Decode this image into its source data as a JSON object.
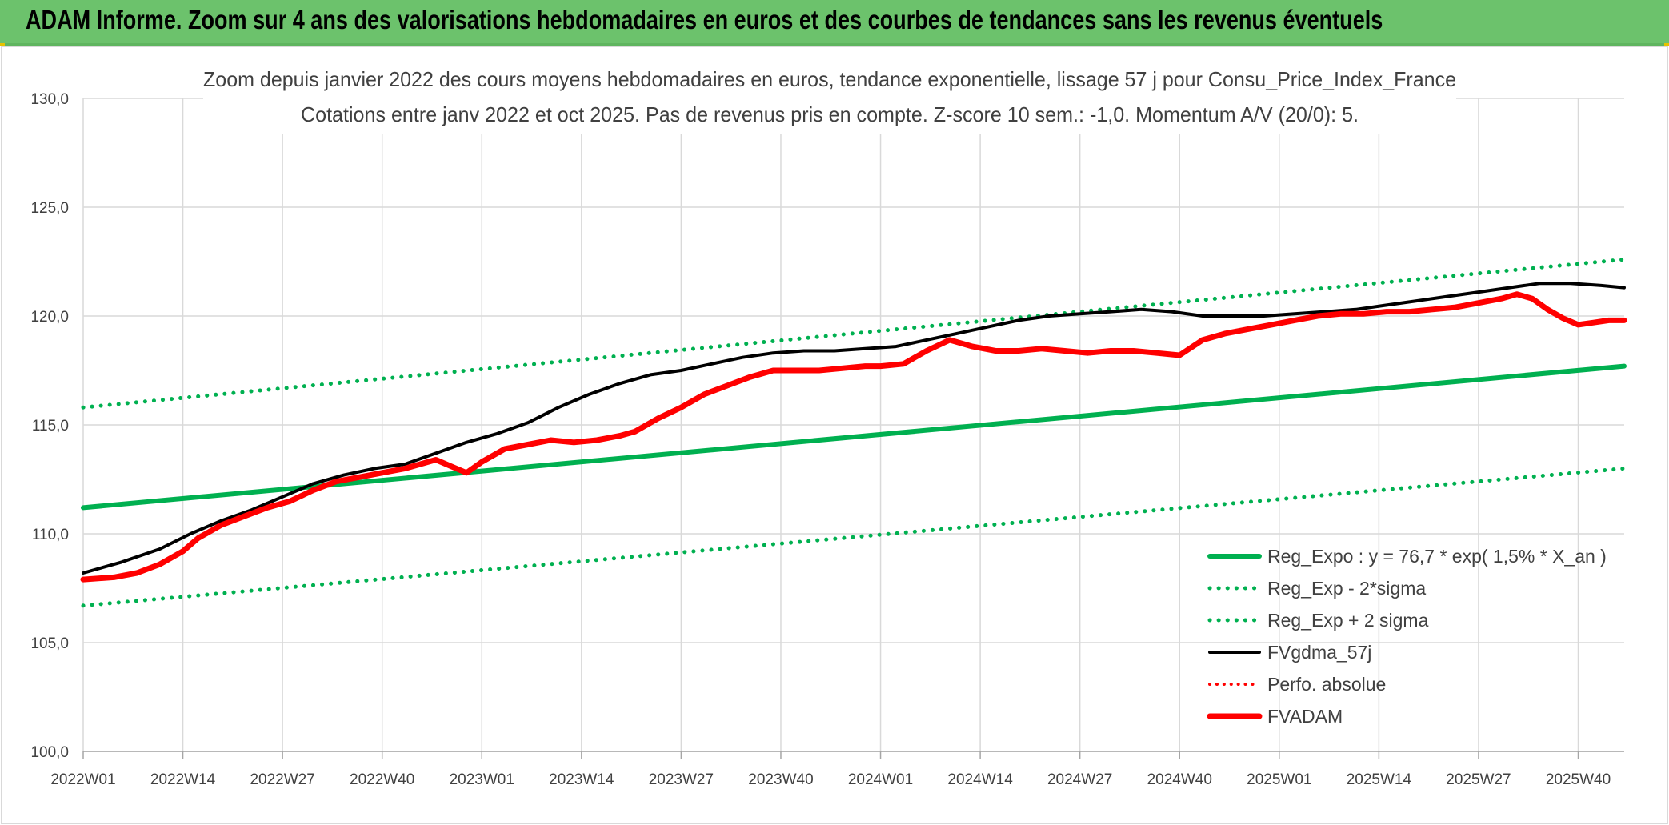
{
  "banner": {
    "title": "ADAM Informe. Zoom sur 4 ans des valorisations hebdomadaires en euros et des courbes de tendances sans les revenus éventuels"
  },
  "chart_data": {
    "type": "line",
    "title_line1": "Zoom depuis janvier 2022 des cours moyens hebdomadaires en euros, tendance exponentielle, lissage 57 j pour Consu_Price_Index_France",
    "title_line2": "Cotations entre janv 2022 et oct 2025. Pas de revenus pris en compte. Z-score 10 sem.: -1,0. Momentum A/V (20/0): 5.",
    "ylim": [
      100,
      130
    ],
    "y_ticks": [
      "100,0",
      "105,0",
      "110,0",
      "115,0",
      "120,0",
      "125,0",
      "130,0"
    ],
    "x_tick_labels": [
      "2022W01",
      "2022W14",
      "2022W27",
      "2022W40",
      "2023W01",
      "2023W14",
      "2023W27",
      "2023W40",
      "2024W01",
      "2024W14",
      "2024W27",
      "2024W40",
      "2025W01",
      "2025W14",
      "2025W27",
      "2025W40"
    ],
    "x_tick_index": [
      0,
      13,
      26,
      39,
      52,
      65,
      78,
      91,
      104,
      117,
      130,
      143,
      156,
      169,
      182,
      195
    ],
    "n_weeks": 202,
    "grid": true,
    "legend_position": "bottom-right",
    "series": [
      {
        "name": "Reg_Expo : y = 76,7 * exp( 1,5% *  X_an )",
        "color": "#00b050",
        "style": "solid",
        "width": 6,
        "points": [
          [
            0,
            111.2
          ],
          [
            201,
            117.7
          ]
        ]
      },
      {
        "name": "Reg_Exp - 2*sigma",
        "color": "#00b050",
        "style": "dotted",
        "width": 5,
        "points": [
          [
            0,
            106.7
          ],
          [
            201,
            113.0
          ]
        ]
      },
      {
        "name": "Reg_Exp + 2 sigma",
        "color": "#00b050",
        "style": "dotted",
        "width": 5,
        "points": [
          [
            0,
            115.8
          ],
          [
            201,
            122.6
          ]
        ]
      },
      {
        "name": "FVgdma_57j",
        "color": "#000000",
        "style": "solid",
        "width": 4,
        "points": [
          [
            0,
            108.2
          ],
          [
            5,
            108.7
          ],
          [
            10,
            109.3
          ],
          [
            14,
            110.0
          ],
          [
            18,
            110.6
          ],
          [
            22,
            111.1
          ],
          [
            26,
            111.7
          ],
          [
            30,
            112.3
          ],
          [
            34,
            112.7
          ],
          [
            38,
            113.0
          ],
          [
            42,
            113.2
          ],
          [
            46,
            113.7
          ],
          [
            50,
            114.2
          ],
          [
            54,
            114.6
          ],
          [
            58,
            115.1
          ],
          [
            62,
            115.8
          ],
          [
            66,
            116.4
          ],
          [
            70,
            116.9
          ],
          [
            74,
            117.3
          ],
          [
            78,
            117.5
          ],
          [
            82,
            117.8
          ],
          [
            86,
            118.1
          ],
          [
            90,
            118.3
          ],
          [
            94,
            118.4
          ],
          [
            98,
            118.4
          ],
          [
            102,
            118.5
          ],
          [
            106,
            118.6
          ],
          [
            110,
            118.9
          ],
          [
            114,
            119.2
          ],
          [
            118,
            119.5
          ],
          [
            122,
            119.8
          ],
          [
            126,
            120.0
          ],
          [
            130,
            120.1
          ],
          [
            134,
            120.2
          ],
          [
            138,
            120.3
          ],
          [
            142,
            120.2
          ],
          [
            146,
            120.0
          ],
          [
            150,
            120.0
          ],
          [
            154,
            120.0
          ],
          [
            158,
            120.1
          ],
          [
            162,
            120.2
          ],
          [
            166,
            120.3
          ],
          [
            170,
            120.5
          ],
          [
            174,
            120.7
          ],
          [
            178,
            120.9
          ],
          [
            182,
            121.1
          ],
          [
            186,
            121.3
          ],
          [
            190,
            121.5
          ],
          [
            194,
            121.5
          ],
          [
            198,
            121.4
          ],
          [
            201,
            121.3
          ]
        ]
      },
      {
        "name": "Perfo. absolue",
        "color": "#ff0000",
        "style": "dotted",
        "width": 4,
        "points": []
      },
      {
        "name": "FVADAM",
        "color": "#ff0000",
        "style": "solid",
        "width": 7,
        "points": [
          [
            0,
            107.9
          ],
          [
            4,
            108.0
          ],
          [
            7,
            108.2
          ],
          [
            10,
            108.6
          ],
          [
            13,
            109.2
          ],
          [
            15,
            109.8
          ],
          [
            18,
            110.4
          ],
          [
            21,
            110.8
          ],
          [
            24,
            111.2
          ],
          [
            27,
            111.5
          ],
          [
            30,
            112.0
          ],
          [
            33,
            112.4
          ],
          [
            36,
            112.6
          ],
          [
            39,
            112.8
          ],
          [
            42,
            113.0
          ],
          [
            46,
            113.4
          ],
          [
            48,
            113.1
          ],
          [
            50,
            112.8
          ],
          [
            52,
            113.3
          ],
          [
            55,
            113.9
          ],
          [
            58,
            114.1
          ],
          [
            61,
            114.3
          ],
          [
            64,
            114.2
          ],
          [
            67,
            114.3
          ],
          [
            70,
            114.5
          ],
          [
            72,
            114.7
          ],
          [
            75,
            115.3
          ],
          [
            78,
            115.8
          ],
          [
            81,
            116.4
          ],
          [
            84,
            116.8
          ],
          [
            87,
            117.2
          ],
          [
            90,
            117.5
          ],
          [
            93,
            117.5
          ],
          [
            96,
            117.5
          ],
          [
            99,
            117.6
          ],
          [
            102,
            117.7
          ],
          [
            104,
            117.7
          ],
          [
            107,
            117.8
          ],
          [
            110,
            118.4
          ],
          [
            113,
            118.9
          ],
          [
            116,
            118.6
          ],
          [
            119,
            118.4
          ],
          [
            122,
            118.4
          ],
          [
            125,
            118.5
          ],
          [
            128,
            118.4
          ],
          [
            131,
            118.3
          ],
          [
            134,
            118.4
          ],
          [
            137,
            118.4
          ],
          [
            140,
            118.3
          ],
          [
            143,
            118.2
          ],
          [
            146,
            118.9
          ],
          [
            149,
            119.2
          ],
          [
            152,
            119.4
          ],
          [
            155,
            119.6
          ],
          [
            158,
            119.8
          ],
          [
            161,
            120.0
          ],
          [
            164,
            120.1
          ],
          [
            167,
            120.1
          ],
          [
            170,
            120.2
          ],
          [
            173,
            120.2
          ],
          [
            176,
            120.3
          ],
          [
            179,
            120.4
          ],
          [
            182,
            120.6
          ],
          [
            185,
            120.8
          ],
          [
            187,
            121.0
          ],
          [
            189,
            120.8
          ],
          [
            191,
            120.3
          ],
          [
            193,
            119.9
          ],
          [
            195,
            119.6
          ],
          [
            197,
            119.7
          ],
          [
            199,
            119.8
          ],
          [
            201,
            119.8
          ]
        ]
      }
    ]
  }
}
